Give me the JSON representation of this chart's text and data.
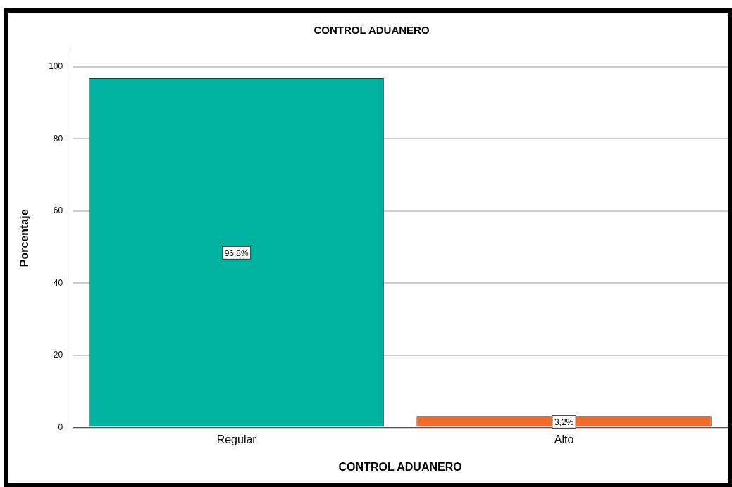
{
  "chart_data": {
    "type": "bar",
    "title": "CONTROL ADUANERO",
    "xlabel": "CONTROL ADUANERO",
    "ylabel": "Porcentaje",
    "categories": [
      "Regular",
      "Alto"
    ],
    "values": [
      96.8,
      3.2
    ],
    "colors": [
      "#00b2a0",
      "#f26b2a"
    ],
    "value_labels": [
      "96,8%",
      "3,2%"
    ],
    "ylim": [
      0,
      105
    ],
    "yticks": [
      0,
      20,
      40,
      60,
      80,
      100
    ],
    "grid": "y",
    "legend": false
  }
}
